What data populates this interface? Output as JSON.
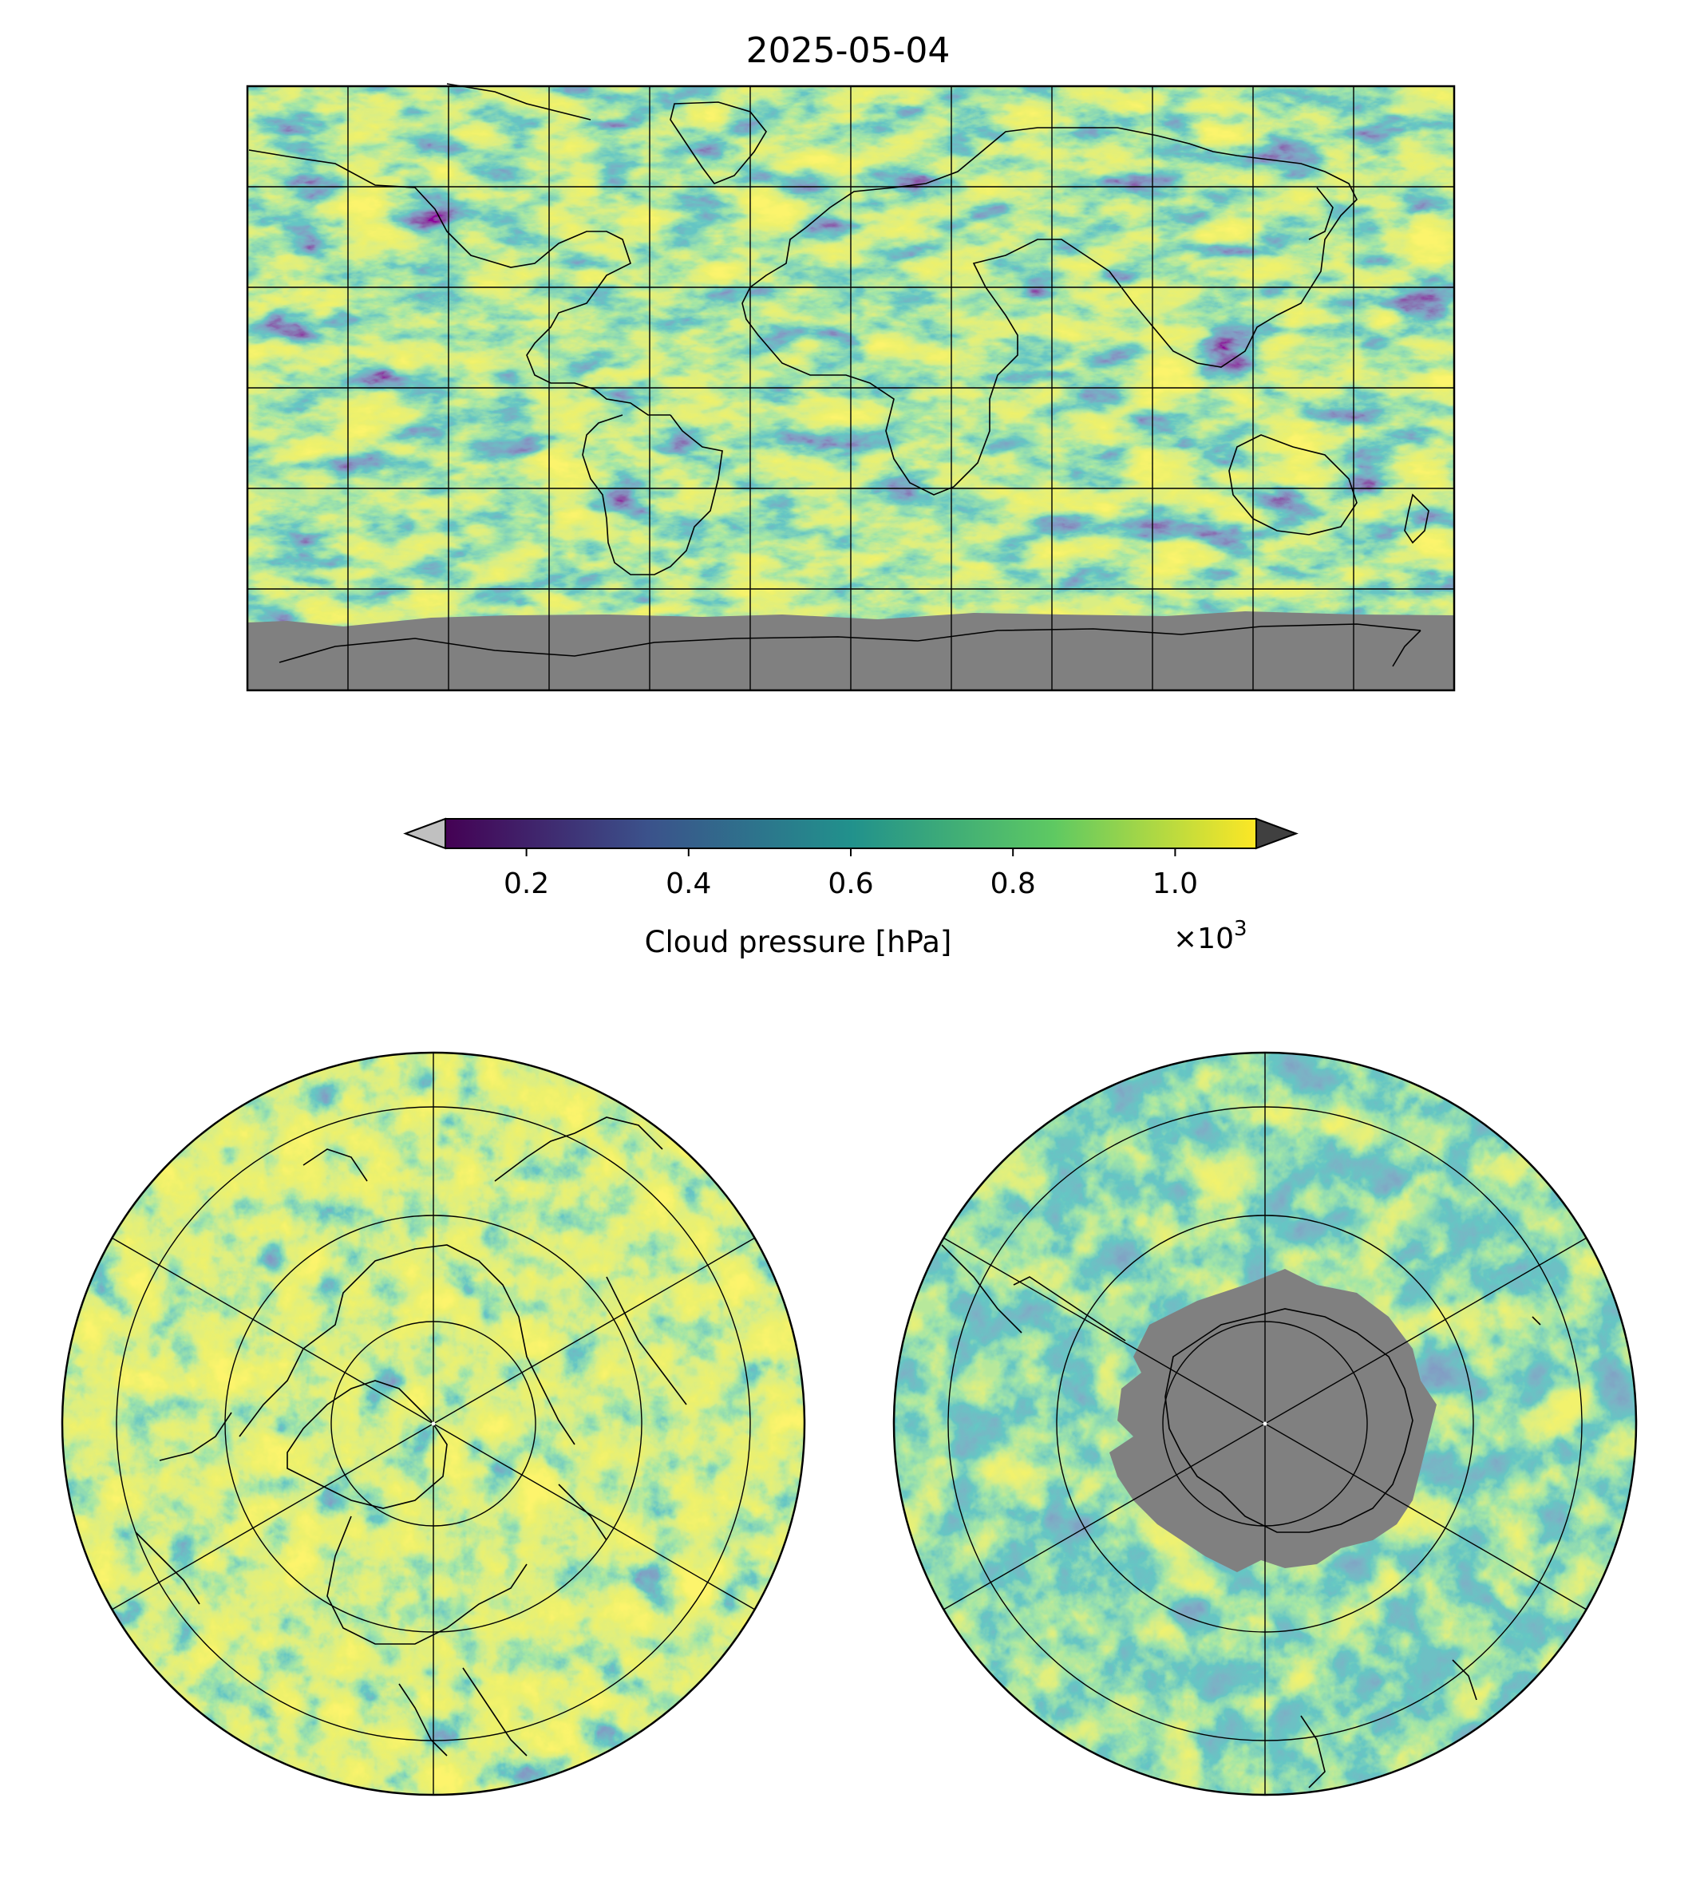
{
  "figure": {
    "title": "2025-05-04",
    "panels": [
      {
        "name": "global-map",
        "projection": "equirectangular",
        "gridlines": true,
        "coastlines": true
      },
      {
        "name": "north-polar-map",
        "projection": "north polar stereographic",
        "gridlines": true,
        "coastlines": true
      },
      {
        "name": "south-polar-map",
        "projection": "south polar stereographic",
        "gridlines": true,
        "coastlines": true
      }
    ],
    "no_data_color": "#808080"
  },
  "colorbar": {
    "label": "Cloud pressure [hPa]",
    "multiplier": "×10",
    "multiplier_exponent": "3",
    "ticks": [
      "0.2",
      "0.4",
      "0.6",
      "0.8",
      "1.0"
    ],
    "tick_values": [
      0.2,
      0.4,
      0.6,
      0.8,
      1.0
    ],
    "range": [
      0.1,
      1.1
    ],
    "colormap": "viridis",
    "extend": "both",
    "under_color": "#c0c0c0",
    "over_color": "#404040",
    "colormap_stops": [
      "#440154",
      "#3b528b",
      "#21918c",
      "#5ec962",
      "#fde725"
    ]
  }
}
